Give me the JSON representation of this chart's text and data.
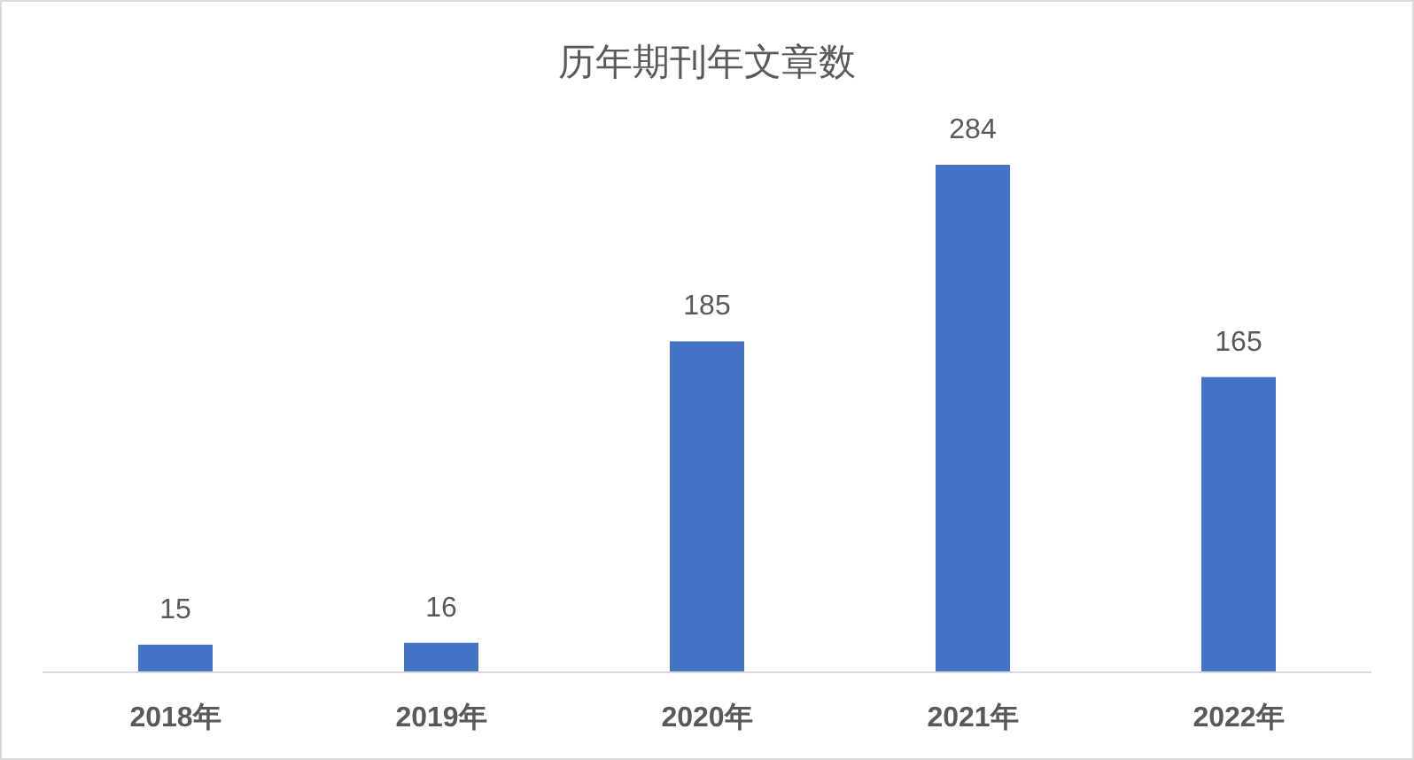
{
  "chart_data": {
    "type": "bar",
    "title": "历年期刊年文章数",
    "categories": [
      "2018年",
      "2019年",
      "2020年",
      "2021年",
      "2022年"
    ],
    "values": [
      15,
      16,
      185,
      284,
      165
    ],
    "color": "#4472c4",
    "data_labels": true
  }
}
